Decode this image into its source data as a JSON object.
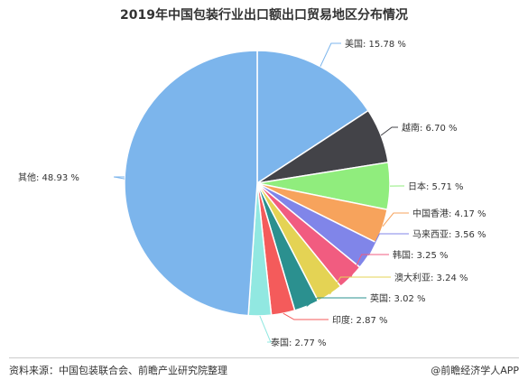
{
  "chart_data": {
    "type": "pie",
    "title": "2019年中国包装行业出口额出口贸易地区分布情况",
    "slices": [
      {
        "label": "美国: 15.78 %",
        "value": 15.78,
        "color": "#7cb5ec"
      },
      {
        "label": "越南: 6.70 %",
        "value": 6.7,
        "color": "#434348"
      },
      {
        "label": "日本: 5.71 %",
        "value": 5.71,
        "color": "#90ed7d"
      },
      {
        "label": "中国香港: 4.17 %",
        "value": 4.17,
        "color": "#f7a35c"
      },
      {
        "label": "马来西亚: 3.56 %",
        "value": 3.56,
        "color": "#8085e9"
      },
      {
        "label": "韩国: 3.25 %",
        "value": 3.25,
        "color": "#f15c80"
      },
      {
        "label": "澳大利亚: 3.24 %",
        "value": 3.24,
        "color": "#e4d354"
      },
      {
        "label": "英国: 3.02 %",
        "value": 3.02,
        "color": "#2b908f"
      },
      {
        "label": "印度: 2.87 %",
        "value": 2.87,
        "color": "#f45b5b"
      },
      {
        "label": "泰国: 2.77 %",
        "value": 2.77,
        "color": "#91e8e1"
      },
      {
        "label": "其他: 48.93 %",
        "value": 48.93,
        "color": "#7cb5ec"
      }
    ]
  },
  "footer": {
    "source": "资料来源：中国包装联合会、前瞻产业研究院整理",
    "brand": "@前瞻经济学人APP"
  }
}
